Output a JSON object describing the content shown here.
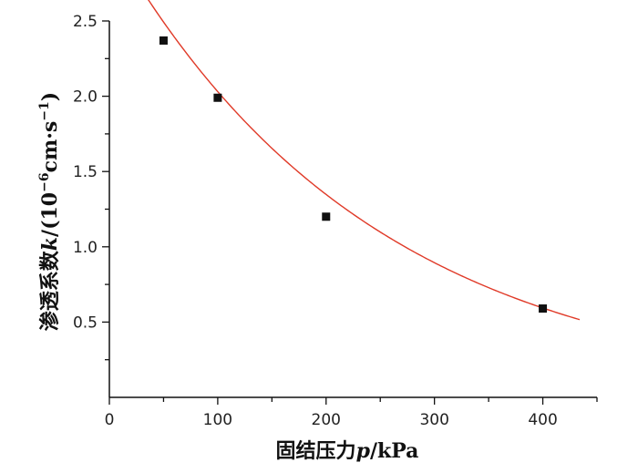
{
  "chart_data": {
    "type": "scatter",
    "x_label": {
      "prefix": "固结压力",
      "variable": "p",
      "unit": "/kPa"
    },
    "y_label": {
      "prefix": "渗透系数",
      "variable": "k",
      "unit_main": "/(10",
      "unit_exp1": "−6",
      "unit_mid": "cm·s",
      "unit_exp2": "−1",
      "unit_end": ")"
    },
    "xlim": [
      0,
      450
    ],
    "ylim": [
      0,
      2.5
    ],
    "x_ticks": [
      0,
      100,
      200,
      300,
      400
    ],
    "y_ticks": [
      0.5,
      1.0,
      1.5,
      2.0,
      2.5
    ],
    "x_tick_labels": [
      "0",
      "100",
      "200",
      "300",
      "400"
    ],
    "y_tick_labels": [
      "0.5",
      "1.0",
      "1.5",
      "2.0",
      "2.5"
    ],
    "series": [
      {
        "marker": "square",
        "color": "#111111",
        "points": [
          {
            "x": 50,
            "y": 2.37
          },
          {
            "x": 100,
            "y": 1.99
          },
          {
            "x": 200,
            "y": 1.2
          },
          {
            "x": 400,
            "y": 0.59
          }
        ]
      }
    ],
    "fit_curve": {
      "type": "exponential",
      "color": "#e03a28",
      "a": 3.06,
      "b": 0.0041,
      "x_range": [
        32,
        435
      ]
    },
    "grid": false
  }
}
